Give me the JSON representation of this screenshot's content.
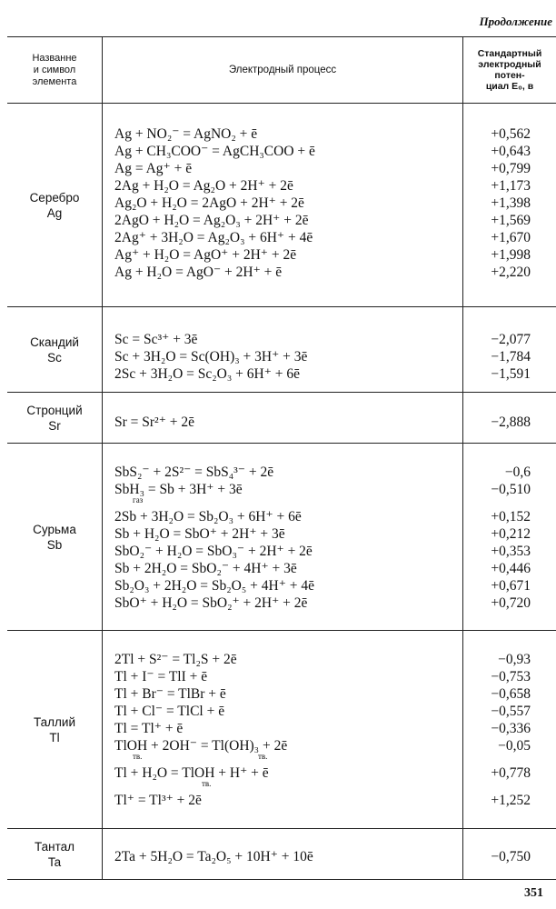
{
  "continuation": "Продолжение",
  "header": {
    "col1": [
      "Названне",
      "и символ",
      "элемента"
    ],
    "col2": "Электродный процесс",
    "col3": [
      "Стандартный",
      "электродный",
      "потен-",
      "циал E₀, в"
    ]
  },
  "sections": [
    {
      "name": "Серебро",
      "symbol": "Ag",
      "rows": [
        {
          "eq": "Ag + NO₂⁻ = AgNO₂ + ē",
          "v": "+0,562"
        },
        {
          "eq": "Ag + CH₃COO⁻ = AgCH₃COO + ē",
          "v": "+0,643"
        },
        {
          "eq": "Ag = Ag⁺ + ē",
          "v": "+0,799"
        },
        {
          "eq": "2Ag + H₂O = Ag₂O + 2H⁺ + 2ē",
          "v": "+1,173"
        },
        {
          "eq": "Ag₂O + H₂O = 2AgO + 2H⁺ + 2ē",
          "v": "+1,398"
        },
        {
          "eq": "2AgO + H₂O = Ag₂O₃ + 2H⁺ + 2ē",
          "v": "+1,569"
        },
        {
          "eq": "2Ag⁺ + 3H₂O = Ag₂O₃ + 6H⁺ + 4ē",
          "v": "+1,670"
        },
        {
          "eq": "Ag⁺ + H₂O = AgO⁺ + 2H⁺ + 2ē",
          "v": "+1,998"
        },
        {
          "eq": "Ag + H₂O = AgO⁻ + 2H⁺ + ē",
          "v": "+2,220"
        }
      ]
    },
    {
      "name": "Скандий",
      "symbol": "Sc",
      "rows": [
        {
          "eq": "Sc = Sc³⁺ + 3ē",
          "v": "−2,077"
        },
        {
          "eq": "Sc + 3H₂O = Sc(OH)₃ + 3H⁺ + 3ē",
          "v": "−1,784"
        },
        {
          "eq": "2Sc + 3H₂O = Sc₂O₃ + 6H⁺ + 6ē",
          "v": "−1,591"
        }
      ]
    },
    {
      "name": "Стронций",
      "symbol": "Sr",
      "rows": [
        {
          "eq": "Sr = Sr²⁺ + 2ē",
          "v": "−2,888"
        }
      ]
    },
    {
      "name": "Сурьма",
      "symbol": "Sb",
      "rows": [
        {
          "eq": "SbS₂⁻ + 2S²⁻ = SbS₄³⁻ + 2ē",
          "v": "−0,6"
        },
        {
          "eq": "SbH₃ = Sb + 3H⁺ + 3ē",
          "v": "−0,510",
          "notes": [
            "газ"
          ]
        },
        {
          "eq": "2Sb + 3H₂O = Sb₂O₃ + 6H⁺ + 6ē",
          "v": "+0,152"
        },
        {
          "eq": "Sb + H₂O = SbO⁺ + 2H⁺ + 3ē",
          "v": "+0,212"
        },
        {
          "eq": "SbO₂⁻ + H₂O = SbO₃⁻ + 2H⁺ + 2ē",
          "v": "+0,353"
        },
        {
          "eq": "Sb + 2H₂O = SbO₂⁻ + 4H⁺ + 3ē",
          "v": "+0,446"
        },
        {
          "eq": "Sb₂O₃ + 2H₂O = Sb₂O₅ + 4H⁺ + 4ē",
          "v": "+0,671"
        },
        {
          "eq": "SbO⁺ + H₂O = SbO₂⁺ + 2H⁺ + 2ē",
          "v": "+0,720"
        }
      ]
    },
    {
      "name": "Таллий",
      "symbol": "Tl",
      "rows": [
        {
          "eq": "2Tl + S²⁻ = Tl₂S + 2ē",
          "v": "−0,93"
        },
        {
          "eq": "Tl + I⁻ = TlI + ē",
          "v": "−0,753"
        },
        {
          "eq": "Tl + Br⁻ = TlBr + ē",
          "v": "−0,658"
        },
        {
          "eq": "Tl + Cl⁻ = TlCl + ē",
          "v": "−0,557"
        },
        {
          "eq": "Tl = Tl⁺ + ē",
          "v": "−0,336"
        },
        {
          "eq": "TlOH + 2OH⁻ = Tl(OH)₃ + 2ē",
          "v": "−0,05",
          "notes": [
            "тв.",
            "тв."
          ]
        },
        {
          "eq": "Tl + H₂O = TlOH + H⁺ + ē",
          "v": "+0,778",
          "notes": [
            "тв."
          ]
        },
        {
          "eq": "Tl⁺ = Tl³⁺ + 2ē",
          "v": "+1,252"
        }
      ]
    },
    {
      "name": "Тантал",
      "symbol": "Ta",
      "rows": [
        {
          "eq": "2Ta + 5H₂O = Ta₂O₅ + 10H⁺ + 10ē",
          "v": "−0,750"
        }
      ]
    }
  ],
  "page_number": "351"
}
